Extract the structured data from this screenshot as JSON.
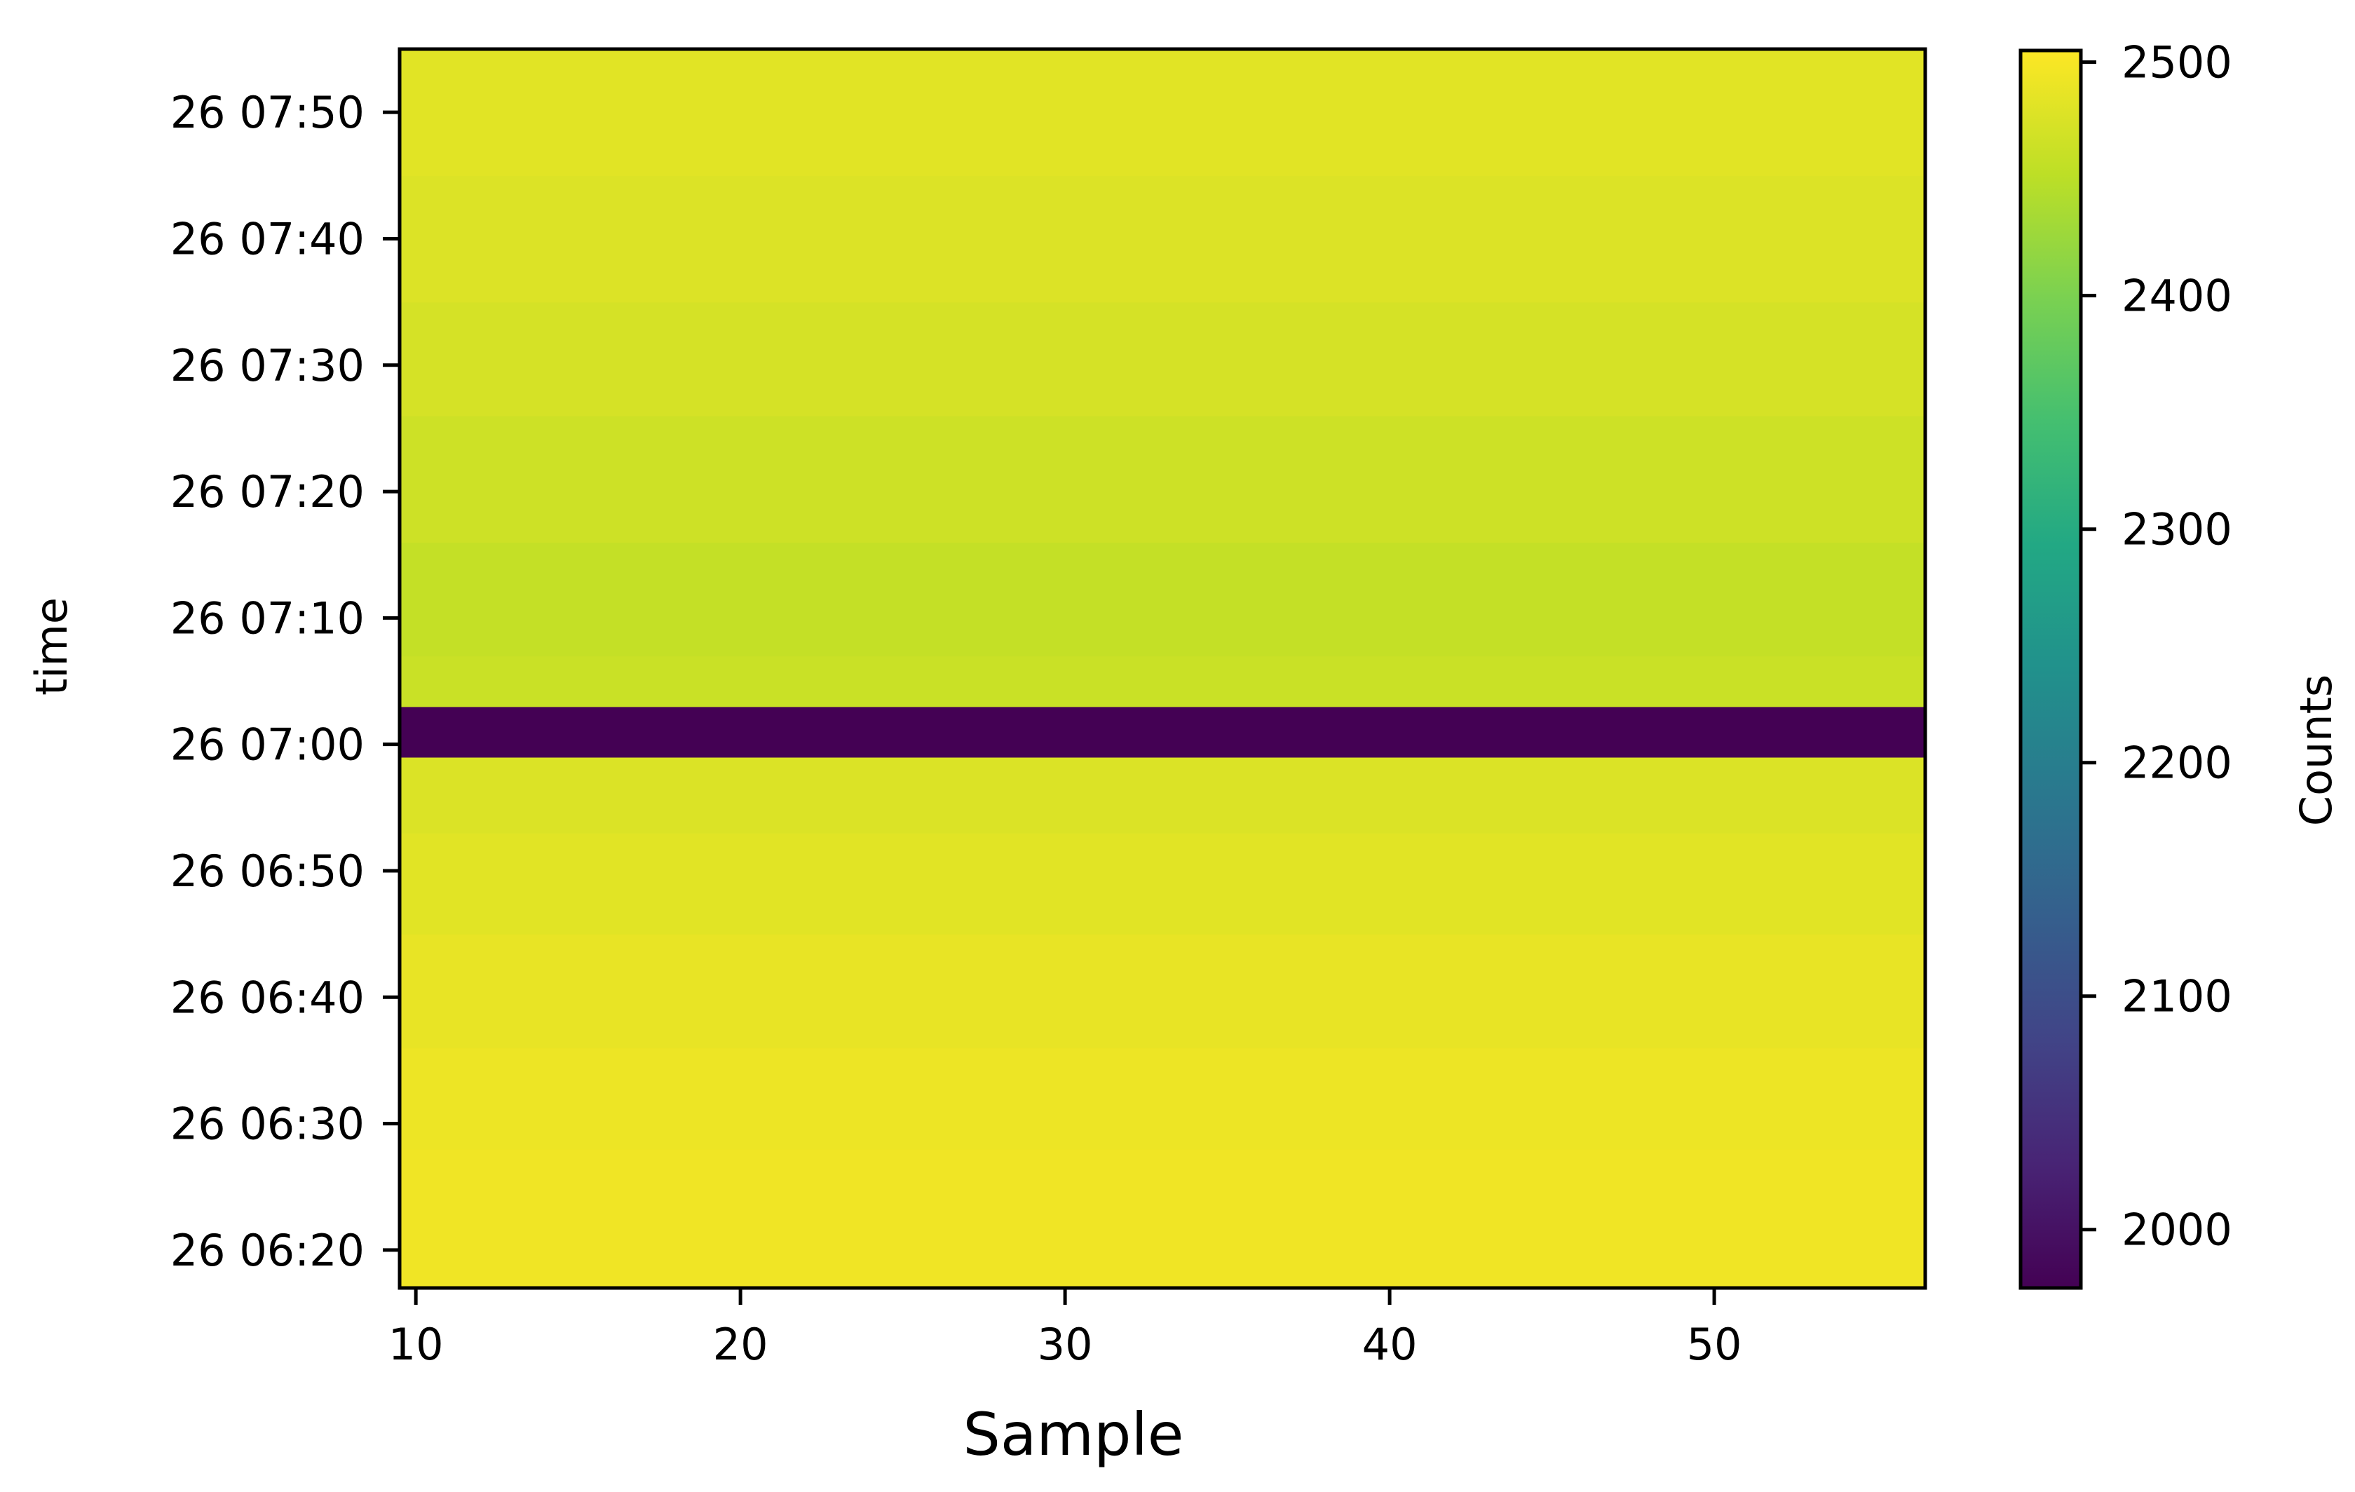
{
  "chart_data": {
    "type": "heatmap",
    "title": "",
    "xlabel": "Sample",
    "ylabel": "time",
    "colorbar_label": "Counts",
    "colormap": "viridis",
    "xlim": [
      9.5,
      56.5
    ],
    "x_ticks": [
      10,
      20,
      30,
      40,
      50
    ],
    "x_tick_labels": [
      "10",
      "20",
      "30",
      "40",
      "50"
    ],
    "ylim": [
      "26 06:17",
      "26 07:55"
    ],
    "y_ticks": [
      "26 06:20",
      "26 06:30",
      "26 06:40",
      "26 06:50",
      "26 07:00",
      "26 07:10",
      "26 07:20",
      "26 07:30",
      "26 07:40",
      "26 07:50"
    ],
    "clim": [
      1975,
      2505
    ],
    "colorbar_ticks": [
      2000,
      2100,
      2200,
      2300,
      2400,
      2500
    ],
    "colorbar_tick_labels": [
      "2000",
      "2100",
      "2200",
      "2300",
      "2400",
      "2500"
    ],
    "row_bands": [
      {
        "start": "26 06:17",
        "end": "26 06:28",
        "value": 2494
      },
      {
        "start": "26 06:28",
        "end": "26 06:36",
        "value": 2492
      },
      {
        "start": "26 06:36",
        "end": "26 06:45",
        "value": 2488
      },
      {
        "start": "26 06:45",
        "end": "26 06:53",
        "value": 2482
      },
      {
        "start": "26 06:53",
        "end": "26 06:59",
        "value": 2477
      },
      {
        "start": "26 06:59",
        "end": "26 07:03",
        "value": 1975
      },
      {
        "start": "26 07:03",
        "end": "26 07:07",
        "value": 2462
      },
      {
        "start": "26 07:07",
        "end": "26 07:16",
        "value": 2458
      },
      {
        "start": "26 07:16",
        "end": "26 07:26",
        "value": 2465
      },
      {
        "start": "26 07:26",
        "end": "26 07:35",
        "value": 2472
      },
      {
        "start": "26 07:35",
        "end": "26 07:45",
        "value": 2478
      },
      {
        "start": "26 07:45",
        "end": "26 07:55",
        "value": 2482
      }
    ],
    "grid": false,
    "legend": "none"
  }
}
